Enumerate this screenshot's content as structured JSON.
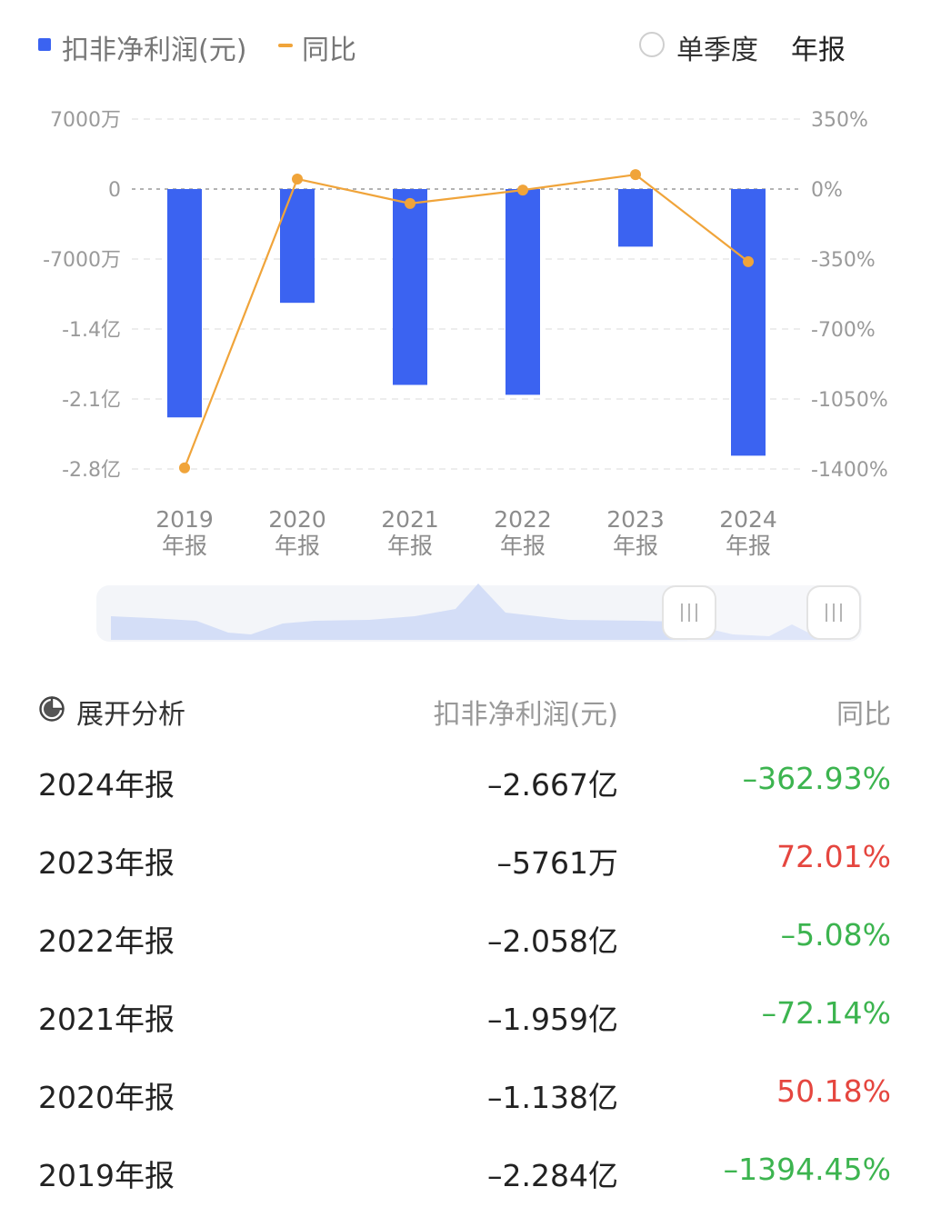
{
  "legend": {
    "bar_label": "扣非净利润(元)",
    "line_label": "同比",
    "quarter_label": "单季度",
    "annual_label": "年报"
  },
  "colors": {
    "bar": "#3b63f1",
    "line": "#f0a43a",
    "positive": "#e5463f",
    "negative": "#3cb44f"
  },
  "chart_data": {
    "type": "bar",
    "categories": [
      "2019\n年报",
      "2020\n年报",
      "2021\n年报",
      "2022\n年报",
      "2023\n年报",
      "2024\n年报"
    ],
    "left_axis": {
      "ticks": [
        "7000万",
        "0",
        "-7000万",
        "-1.4亿",
        "-2.1亿",
        "-2.8亿"
      ],
      "ylim": [
        -280000000,
        70000000
      ]
    },
    "right_axis": {
      "ticks": [
        "350%",
        "0%",
        "-350%",
        "-700%",
        "-1050%",
        "-1400%"
      ],
      "ylim": [
        -1400,
        350
      ]
    },
    "series": [
      {
        "name": "扣非净利润(元)",
        "type": "bar",
        "axis": "left",
        "values": [
          -228400000,
          -113800000,
          -195900000,
          -205800000,
          -57610000,
          -266700000
        ]
      },
      {
        "name": "同比",
        "type": "line",
        "axis": "right",
        "values": [
          -1394.45,
          50.18,
          -72.14,
          -5.08,
          72.01,
          -362.93
        ]
      }
    ],
    "grid": true
  },
  "table": {
    "header": {
      "title": "展开分析",
      "col_value": "扣非净利润(元)",
      "col_yoy": "同比"
    },
    "rows": [
      {
        "period": "2024年报",
        "value": "–2.667亿",
        "yoy": "–362.93%",
        "trend": "down"
      },
      {
        "period": "2023年报",
        "value": "–5761万",
        "yoy": "72.01%",
        "trend": "up"
      },
      {
        "period": "2022年报",
        "value": "–2.058亿",
        "yoy": "–5.08%",
        "trend": "down"
      },
      {
        "period": "2021年报",
        "value": "–1.959亿",
        "yoy": "–72.14%",
        "trend": "down"
      },
      {
        "period": "2020年报",
        "value": "–1.138亿",
        "yoy": "50.18%",
        "trend": "up"
      },
      {
        "period": "2019年报",
        "value": "–2.284亿",
        "yoy": "–1394.45%",
        "trend": "down"
      }
    ]
  }
}
